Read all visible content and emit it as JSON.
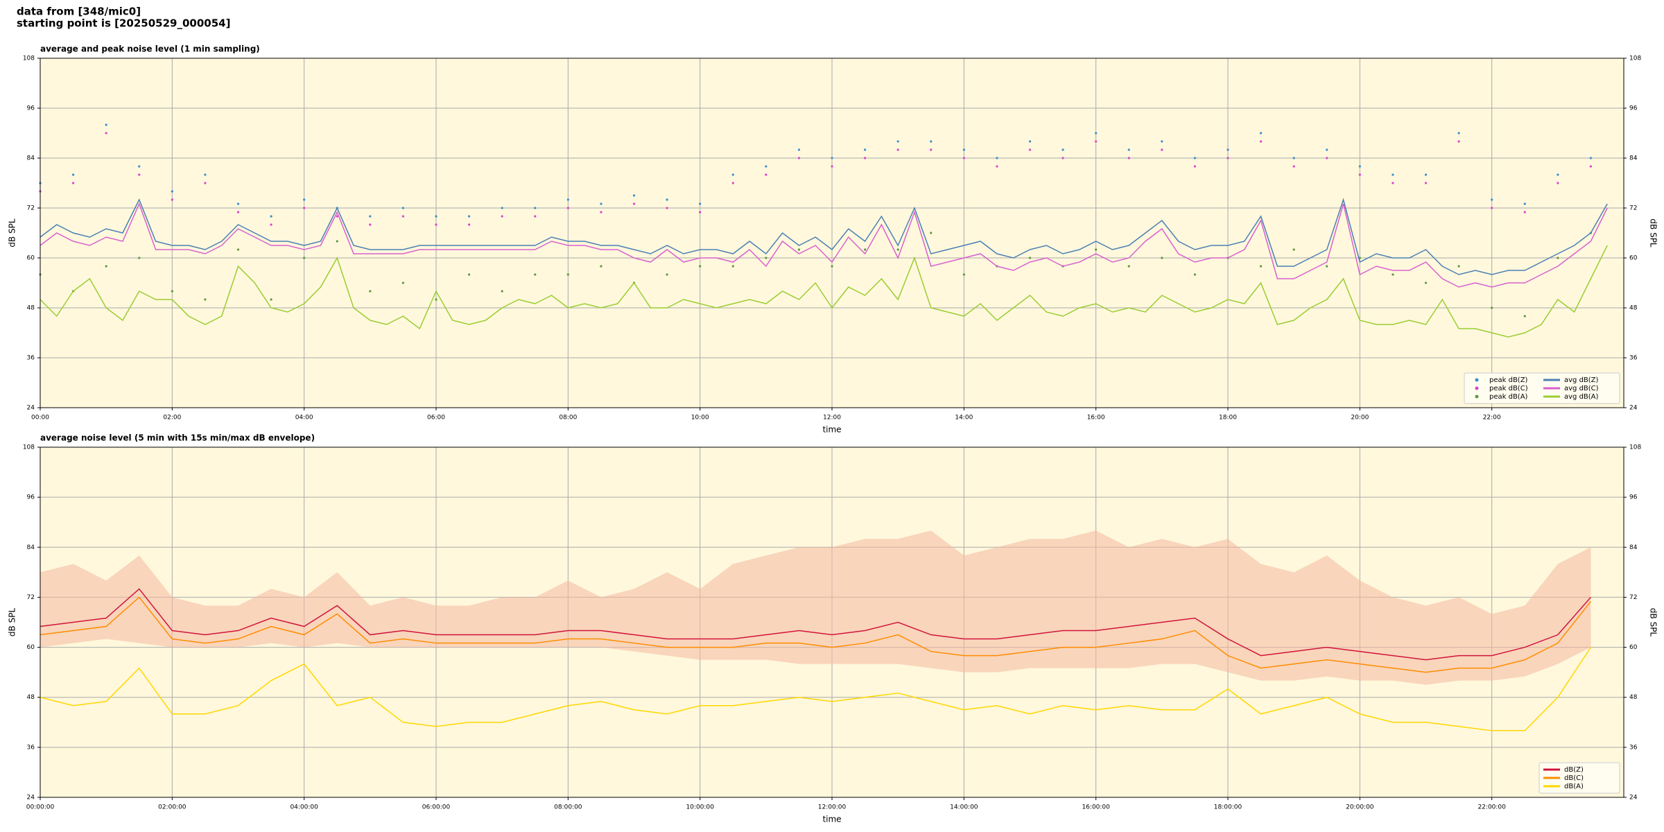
{
  "header": {
    "line1": "data from [348/mic0]",
    "line2": "starting point is [20250529_000054]"
  },
  "chart_data": [
    {
      "type": "line",
      "title": "average and peak noise level (1 min sampling)",
      "xlabel": "time",
      "ylabel": "dB SPL",
      "y2label": "dB SPL",
      "xlim": [
        0,
        24
      ],
      "ylim": [
        24,
        108
      ],
      "yticks": [
        24,
        36,
        48,
        60,
        72,
        84,
        96,
        108
      ],
      "y2lim": [
        24,
        108
      ],
      "y2ticks": [
        24,
        36,
        48,
        60,
        72,
        84,
        96,
        108
      ],
      "xticks": [
        {
          "value": 0,
          "label": "00:00"
        },
        {
          "value": 2,
          "label": "02:00"
        },
        {
          "value": 4,
          "label": "04:00"
        },
        {
          "value": 6,
          "label": "06:00"
        },
        {
          "value": 8,
          "label": "08:00"
        },
        {
          "value": 10,
          "label": "10:00"
        },
        {
          "value": 12,
          "label": "12:00"
        },
        {
          "value": 14,
          "label": "14:00"
        },
        {
          "value": 16,
          "label": "16:00"
        },
        {
          "value": 18,
          "label": "18:00"
        },
        {
          "value": 20,
          "label": "20:00"
        },
        {
          "value": 22,
          "label": "22:00"
        }
      ],
      "grid": true,
      "background": "#fff8dc",
      "legend": "lower right",
      "legend_columns": 2,
      "x": [
        0,
        0.25,
        0.5,
        0.75,
        1,
        1.25,
        1.5,
        1.75,
        2,
        2.25,
        2.5,
        2.75,
        3,
        3.25,
        3.5,
        3.75,
        4,
        4.25,
        4.5,
        4.75,
        5,
        5.25,
        5.5,
        5.75,
        6,
        6.25,
        6.5,
        6.75,
        7,
        7.25,
        7.5,
        7.75,
        8,
        8.25,
        8.5,
        8.75,
        9,
        9.25,
        9.5,
        9.75,
        10,
        10.25,
        10.5,
        10.75,
        11,
        11.25,
        11.5,
        11.75,
        12,
        12.25,
        12.5,
        12.75,
        13,
        13.25,
        13.5,
        13.75,
        14,
        14.25,
        14.5,
        14.75,
        15,
        15.25,
        15.5,
        15.75,
        16,
        16.25,
        16.5,
        16.75,
        17,
        17.25,
        17.5,
        17.75,
        18,
        18.25,
        18.5,
        18.75,
        19,
        19.25,
        19.5,
        19.75,
        20,
        20.25,
        20.5,
        20.75,
        21,
        21.25,
        21.5,
        21.75,
        22,
        22.25,
        22.5,
        22.75,
        23,
        23.25,
        23.5,
        23.75
      ],
      "series": [
        {
          "name": "peak dB(Z)",
          "type": "scatter",
          "color": "#3a8fd0",
          "x": [
            0,
            0.5,
            1,
            1.5,
            2,
            2.5,
            3,
            3.5,
            4,
            4.5,
            5,
            5.5,
            6,
            6.5,
            7,
            7.5,
            8,
            8.5,
            9,
            9.5,
            10,
            10.5,
            11,
            11.5,
            12,
            12.5,
            13,
            13.5,
            14,
            14.5,
            15,
            15.5,
            16,
            16.5,
            17,
            17.5,
            18,
            18.5,
            19,
            19.5,
            20,
            20.5,
            21,
            21.5,
            22,
            22.5,
            23,
            23.5
          ],
          "values": [
            78,
            80,
            92,
            82,
            76,
            80,
            73,
            70,
            74,
            72,
            70,
            72,
            70,
            70,
            72,
            72,
            74,
            73,
            75,
            74,
            73,
            80,
            82,
            86,
            84,
            86,
            88,
            88,
            86,
            84,
            88,
            86,
            90,
            86,
            88,
            84,
            86,
            90,
            84,
            86,
            82,
            80,
            80,
            90,
            74,
            73,
            80,
            84
          ]
        },
        {
          "name": "peak dB(C)",
          "type": "scatter",
          "color": "#e040d0",
          "x": [
            0,
            0.5,
            1,
            1.5,
            2,
            2.5,
            3,
            3.5,
            4,
            4.5,
            5,
            5.5,
            6,
            6.5,
            7,
            7.5,
            8,
            8.5,
            9,
            9.5,
            10,
            10.5,
            11,
            11.5,
            12,
            12.5,
            13,
            13.5,
            14,
            14.5,
            15,
            15.5,
            16,
            16.5,
            17,
            17.5,
            18,
            18.5,
            19,
            19.5,
            20,
            20.5,
            21,
            21.5,
            22,
            22.5,
            23,
            23.5
          ],
          "values": [
            76,
            78,
            90,
            80,
            74,
            78,
            71,
            68,
            72,
            70,
            68,
            70,
            68,
            68,
            70,
            70,
            72,
            71,
            73,
            72,
            71,
            78,
            80,
            84,
            82,
            84,
            86,
            86,
            84,
            82,
            86,
            84,
            88,
            84,
            86,
            82,
            84,
            88,
            82,
            84,
            80,
            78,
            78,
            88,
            72,
            71,
            78,
            82
          ]
        },
        {
          "name": "peak dB(A)",
          "type": "scatter",
          "color": "#5a9a40",
          "x": [
            0,
            0.5,
            1,
            1.5,
            2,
            2.5,
            3,
            3.5,
            4,
            4.5,
            5,
            5.5,
            6,
            6.5,
            7,
            7.5,
            8,
            8.5,
            9,
            9.5,
            10,
            10.5,
            11,
            11.5,
            12,
            12.5,
            13,
            13.5,
            14,
            14.5,
            15,
            15.5,
            16,
            16.5,
            17,
            17.5,
            18,
            18.5,
            19,
            19.5,
            20,
            20.5,
            21,
            21.5,
            22,
            22.5,
            23,
            23.5
          ],
          "values": [
            56,
            52,
            58,
            60,
            52,
            50,
            62,
            50,
            60,
            64,
            52,
            54,
            50,
            56,
            52,
            56,
            56,
            58,
            54,
            56,
            58,
            58,
            60,
            62,
            58,
            62,
            62,
            66,
            56,
            58,
            60,
            58,
            62,
            58,
            60,
            56,
            60,
            58,
            62,
            58,
            60,
            56,
            54,
            58,
            48,
            46,
            60,
            66
          ]
        },
        {
          "name": "avg dB(Z)",
          "type": "line",
          "color": "#4a7fb5",
          "values": [
            65,
            68,
            66,
            65,
            67,
            66,
            74,
            64,
            63,
            63,
            62,
            64,
            68,
            66,
            64,
            64,
            63,
            64,
            72,
            63,
            62,
            62,
            62,
            63,
            63,
            63,
            63,
            63,
            63,
            63,
            63,
            65,
            64,
            64,
            63,
            63,
            62,
            61,
            63,
            61,
            62,
            62,
            61,
            64,
            61,
            66,
            63,
            65,
            62,
            67,
            64,
            70,
            63,
            72,
            61,
            62,
            63,
            64,
            61,
            60,
            62,
            63,
            61,
            62,
            64,
            62,
            63,
            66,
            69,
            64,
            62,
            63,
            63,
            64,
            70,
            58,
            58,
            60,
            62,
            74,
            59,
            61,
            60,
            60,
            62,
            58,
            56,
            57,
            56,
            57,
            57,
            59,
            61,
            63,
            66,
            73
          ]
        },
        {
          "name": "avg dB(C)",
          "type": "line",
          "color": "#d860d0",
          "values": [
            63,
            66,
            64,
            63,
            65,
            64,
            73,
            62,
            62,
            62,
            61,
            63,
            67,
            65,
            63,
            63,
            62,
            63,
            71,
            61,
            61,
            61,
            61,
            62,
            62,
            62,
            62,
            62,
            62,
            62,
            62,
            64,
            63,
            63,
            62,
            62,
            60,
            59,
            62,
            59,
            60,
            60,
            59,
            62,
            58,
            64,
            61,
            63,
            59,
            65,
            61,
            68,
            60,
            71,
            58,
            59,
            60,
            61,
            58,
            57,
            59,
            60,
            58,
            59,
            61,
            59,
            60,
            64,
            67,
            61,
            59,
            60,
            60,
            62,
            69,
            55,
            55,
            57,
            59,
            73,
            56,
            58,
            57,
            57,
            59,
            55,
            53,
            54,
            53,
            54,
            54,
            56,
            58,
            61,
            64,
            72
          ]
        },
        {
          "name": "avg dB(A)",
          "type": "line",
          "color": "#9acd32",
          "values": [
            50,
            46,
            52,
            55,
            48,
            45,
            52,
            50,
            50,
            46,
            44,
            46,
            58,
            54,
            48,
            47,
            49,
            53,
            60,
            48,
            45,
            44,
            46,
            43,
            52,
            45,
            44,
            45,
            48,
            50,
            49,
            51,
            48,
            49,
            48,
            49,
            54,
            48,
            48,
            50,
            49,
            48,
            49,
            50,
            49,
            52,
            50,
            54,
            48,
            53,
            51,
            55,
            50,
            60,
            48,
            47,
            46,
            49,
            45,
            48,
            51,
            47,
            46,
            48,
            49,
            47,
            48,
            47,
            51,
            49,
            47,
            48,
            50,
            49,
            54,
            44,
            45,
            48,
            50,
            55,
            45,
            44,
            44,
            45,
            44,
            50,
            43,
            43,
            42,
            41,
            42,
            44,
            50,
            47,
            55,
            63
          ]
        }
      ]
    },
    {
      "type": "line",
      "title": "average noise level (5 min with 15s min/max dB envelope)",
      "xlabel": "time",
      "ylabel": "dB SPL",
      "y2label": "dB SPL",
      "xlim": [
        0,
        24
      ],
      "ylim": [
        24,
        108
      ],
      "yticks": [
        24,
        36,
        48,
        60,
        72,
        84,
        96,
        108
      ],
      "y2lim": [
        24,
        108
      ],
      "y2ticks": [
        24,
        36,
        48,
        60,
        72,
        84,
        96,
        108
      ],
      "xticks": [
        {
          "value": 0,
          "label": "00:00:00"
        },
        {
          "value": 2,
          "label": "02:00:00"
        },
        {
          "value": 4,
          "label": "04:00:00"
        },
        {
          "value": 6,
          "label": "06:00:00"
        },
        {
          "value": 8,
          "label": "08:00:00"
        },
        {
          "value": 10,
          "label": "10:00:00"
        },
        {
          "value": 12,
          "label": "12:00:00"
        },
        {
          "value": 14,
          "label": "14:00:00"
        },
        {
          "value": 16,
          "label": "16:00:00"
        },
        {
          "value": 18,
          "label": "18:00:00"
        },
        {
          "value": 20,
          "label": "20:00:00"
        },
        {
          "value": 22,
          "label": "22:00:00"
        }
      ],
      "grid": true,
      "background": "#fff8dc",
      "legend": "lower right",
      "legend_columns": 1,
      "x": [
        0,
        0.5,
        1,
        1.5,
        2,
        2.5,
        3,
        3.5,
        4,
        4.5,
        5,
        5.5,
        6,
        6.5,
        7,
        7.5,
        8,
        8.5,
        9,
        9.5,
        10,
        10.5,
        11,
        11.5,
        12,
        12.5,
        13,
        13.5,
        14,
        14.5,
        15,
        15.5,
        16,
        16.5,
        17,
        17.5,
        18,
        18.5,
        19,
        19.5,
        20,
        20.5,
        21,
        21.5,
        22,
        22.5,
        23,
        23.5
      ],
      "envelope": {
        "color": "#f4b8a0",
        "upper": [
          78,
          80,
          76,
          82,
          72,
          70,
          70,
          74,
          72,
          78,
          70,
          72,
          70,
          70,
          72,
          72,
          76,
          72,
          74,
          78,
          74,
          80,
          82,
          84,
          84,
          86,
          86,
          88,
          82,
          84,
          86,
          86,
          88,
          84,
          86,
          84,
          86,
          80,
          78,
          82,
          76,
          72,
          70,
          72,
          68,
          70,
          80,
          84
        ],
        "lower": [
          60,
          61,
          62,
          61,
          60,
          60,
          60,
          61,
          60,
          61,
          60,
          60,
          60,
          60,
          60,
          60,
          60,
          60,
          59,
          58,
          57,
          57,
          57,
          56,
          56,
          56,
          56,
          55,
          54,
          54,
          55,
          55,
          55,
          55,
          56,
          56,
          54,
          52,
          52,
          53,
          52,
          52,
          51,
          52,
          52,
          53,
          56,
          60
        ]
      },
      "series": [
        {
          "name": "dB(Z)",
          "type": "line",
          "color": "#d0143c",
          "values": [
            65,
            66,
            67,
            74,
            64,
            63,
            64,
            67,
            65,
            70,
            63,
            64,
            63,
            63,
            63,
            63,
            64,
            64,
            63,
            62,
            62,
            62,
            63,
            64,
            63,
            64,
            66,
            63,
            62,
            62,
            63,
            64,
            64,
            65,
            66,
            67,
            62,
            58,
            59,
            60,
            59,
            58,
            57,
            58,
            58,
            60,
            63,
            72
          ]
        },
        {
          "name": "dB(C)",
          "type": "line",
          "color": "#ff8c00",
          "values": [
            63,
            64,
            65,
            72,
            62,
            61,
            62,
            65,
            63,
            68,
            61,
            62,
            61,
            61,
            61,
            61,
            62,
            62,
            61,
            60,
            60,
            60,
            61,
            61,
            60,
            61,
            63,
            59,
            58,
            58,
            59,
            60,
            60,
            61,
            62,
            64,
            58,
            55,
            56,
            57,
            56,
            55,
            54,
            55,
            55,
            57,
            61,
            71
          ]
        },
        {
          "name": "dB(A)",
          "type": "line",
          "color": "#ffd700",
          "values": [
            48,
            46,
            47,
            55,
            44,
            44,
            46,
            52,
            56,
            46,
            48,
            42,
            41,
            42,
            42,
            44,
            46,
            47,
            45,
            44,
            46,
            46,
            47,
            48,
            47,
            48,
            49,
            47,
            45,
            46,
            44,
            46,
            45,
            46,
            45,
            45,
            50,
            44,
            46,
            48,
            44,
            42,
            42,
            41,
            40,
            40,
            48,
            60
          ]
        }
      ]
    }
  ]
}
